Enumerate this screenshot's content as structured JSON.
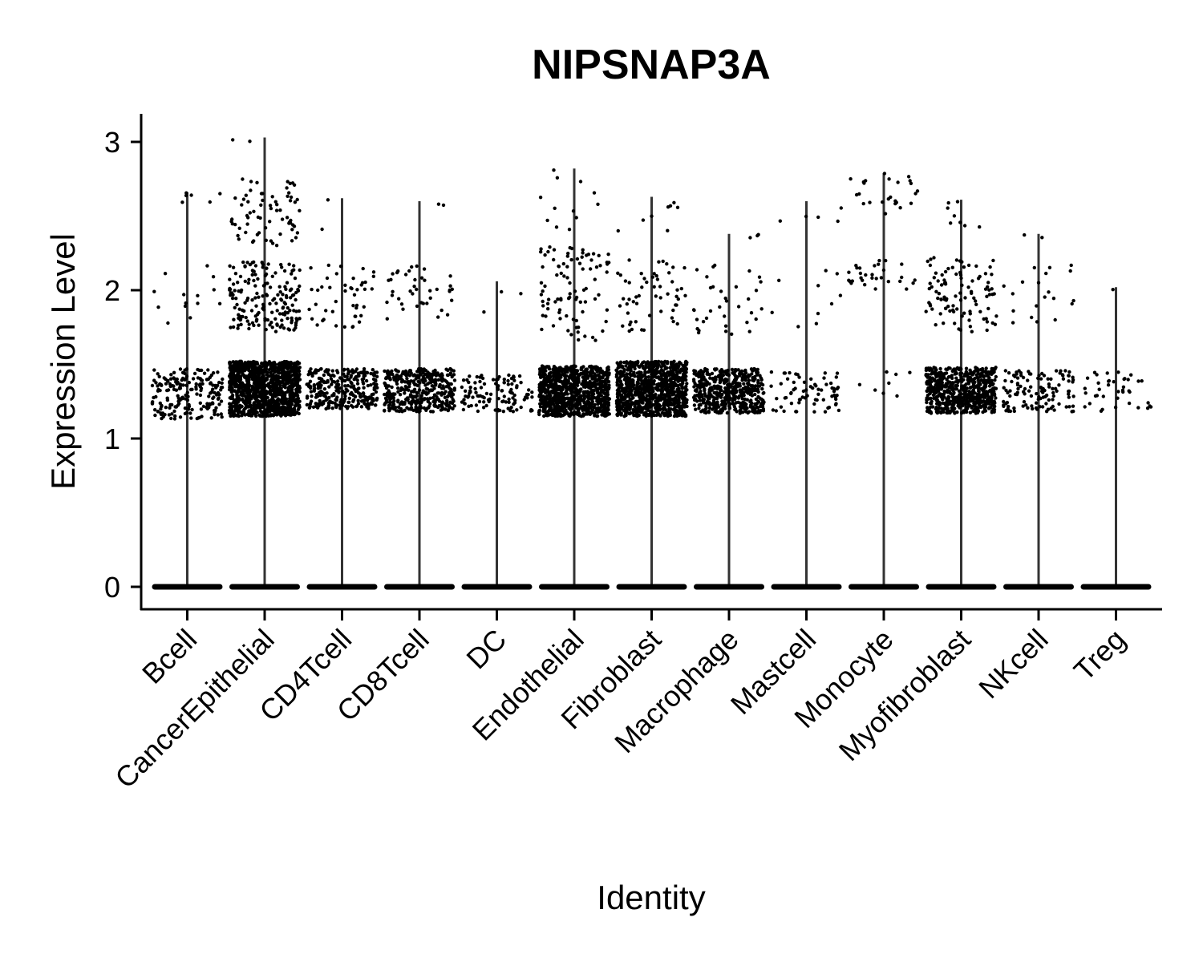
{
  "chart_data": {
    "type": "violin",
    "title": "NIPSNAP3A",
    "xlabel": "Identity",
    "ylabel": "Expression Level",
    "ylim": [
      -0.15,
      3.2
    ],
    "yticks": [
      0,
      1,
      2,
      3
    ],
    "ytick_labels": [
      "0",
      "1",
      "2",
      "3"
    ],
    "grid": false,
    "legend": "none",
    "point_color": "#000000",
    "violin_color": "#333333",
    "categories": [
      "Bcell",
      "CancerEpithelial",
      "CD4Tcell",
      "CD8Tcell",
      "DC",
      "Endothelial",
      "Fibroblast",
      "Macrophage",
      "Mastcell",
      "Monocyte",
      "Myofibroblast",
      "NKcell",
      "Treg"
    ],
    "series": [
      {
        "category": "Bcell",
        "max": 2.66,
        "bands": [
          [
            1.13,
            1.47,
            200
          ],
          [
            1.75,
            2.2,
            14
          ],
          [
            2.55,
            2.66,
            6
          ]
        ]
      },
      {
        "category": "CancerEpithelial",
        "max": 3.03,
        "bands": [
          [
            1.15,
            1.52,
            1200
          ],
          [
            1.72,
            2.2,
            180
          ],
          [
            2.3,
            2.75,
            70
          ],
          [
            2.98,
            3.03,
            2
          ]
        ]
      },
      {
        "category": "CD4Tcell",
        "max": 2.62,
        "bands": [
          [
            1.2,
            1.47,
            300
          ],
          [
            1.75,
            2.18,
            45
          ],
          [
            2.35,
            2.62,
            2
          ]
        ]
      },
      {
        "category": "CD8Tcell",
        "max": 2.6,
        "bands": [
          [
            1.18,
            1.47,
            380
          ],
          [
            1.8,
            2.17,
            40
          ],
          [
            2.38,
            2.6,
            2
          ]
        ]
      },
      {
        "category": "DC",
        "max": 2.06,
        "bands": [
          [
            1.18,
            1.43,
            110
          ],
          [
            1.75,
            2.06,
            3
          ]
        ]
      },
      {
        "category": "Endothelial",
        "max": 2.82,
        "bands": [
          [
            1.15,
            1.49,
            900
          ],
          [
            1.65,
            2.3,
            90
          ],
          [
            2.38,
            2.82,
            12
          ]
        ]
      },
      {
        "category": "Fibroblast",
        "max": 2.63,
        "bands": [
          [
            1.15,
            1.52,
            950
          ],
          [
            1.72,
            2.22,
            55
          ],
          [
            2.4,
            2.63,
            8
          ]
        ]
      },
      {
        "category": "Macrophage",
        "max": 2.38,
        "bands": [
          [
            1.17,
            1.47,
            500
          ],
          [
            1.7,
            2.18,
            35
          ],
          [
            2.35,
            2.38,
            3
          ]
        ]
      },
      {
        "category": "Mastcell",
        "max": 2.6,
        "bands": [
          [
            1.18,
            1.45,
            70
          ],
          [
            1.7,
            2.15,
            10
          ],
          [
            2.33,
            2.6,
            5
          ]
        ]
      },
      {
        "category": "Monocyte",
        "max": 2.79,
        "bands": [
          [
            1.28,
            1.45,
            8
          ],
          [
            2.0,
            2.2,
            30
          ],
          [
            2.5,
            2.79,
            25
          ]
        ]
      },
      {
        "category": "Myofibroblast",
        "max": 2.61,
        "bands": [
          [
            1.17,
            1.48,
            650
          ],
          [
            1.72,
            2.22,
            100
          ],
          [
            2.35,
            2.61,
            8
          ]
        ]
      },
      {
        "category": "NKcell",
        "max": 2.38,
        "bands": [
          [
            1.18,
            1.46,
            120
          ],
          [
            1.78,
            2.17,
            20
          ],
          [
            2.35,
            2.38,
            2
          ]
        ]
      },
      {
        "category": "Treg",
        "max": 2.02,
        "bands": [
          [
            1.18,
            1.45,
            40
          ],
          [
            2.0,
            2.02,
            1
          ]
        ]
      }
    ]
  }
}
